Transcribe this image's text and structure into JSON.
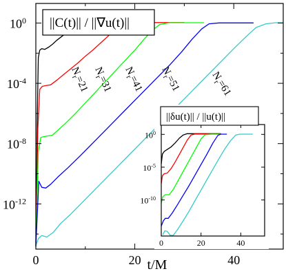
{
  "chart_data": [
    {
      "type": "line",
      "title": "||C(t)|| / ||∇u(t)||",
      "xlabel": "t/M",
      "ylabel": "",
      "xlim": [
        0,
        50
      ],
      "ylim_exponent": [
        -15,
        1.3
      ],
      "y_scale": "log",
      "x_ticks": [
        0,
        20,
        40
      ],
      "y_ticks": [
        {
          "exp": 0,
          "label_base": "10",
          "label_exp": "0"
        },
        {
          "exp": -4,
          "label_base": "10",
          "label_exp": "-4"
        },
        {
          "exp": -8,
          "label_base": "10",
          "label_exp": "-8"
        },
        {
          "exp": -12,
          "label_base": "10",
          "label_exp": "-12"
        }
      ],
      "series": [
        {
          "name": "Nr=21",
          "label_main": "N",
          "label_sub": "r",
          "label_suffix": "=21",
          "color": "#000000",
          "x": [
            0,
            0.3,
            0.5,
            0.8,
            1.2,
            1.8,
            2.6,
            3.4,
            4.2,
            5.2,
            6.4,
            7.6,
            8.6,
            9.6,
            10.6,
            11.5,
            12.5,
            14,
            16,
            18,
            20
          ],
          "y_exp": [
            -14.8,
            -6,
            -2.3,
            -1.8,
            -1.7,
            -1.75,
            -1.6,
            -1.4,
            -1.15,
            -0.9,
            -0.6,
            -0.35,
            -0.15,
            -0.05,
            0,
            0,
            0.01,
            0.02,
            0.02,
            0.02,
            0.02
          ]
        },
        {
          "name": "Nr=31",
          "label_main": "N",
          "label_sub": "r",
          "label_suffix": "=31",
          "color": "#ff0000",
          "x": [
            0,
            0.4,
            0.8,
            1.3,
            2.0,
            3.0,
            4.2,
            5.5,
            7.0,
            8.5,
            10.0,
            11.5,
            13.0,
            14.5,
            15.8,
            17.0,
            18.2,
            20,
            24,
            28,
            30
          ],
          "y_exp": [
            -14.8,
            -7,
            -4.4,
            -4.2,
            -4.15,
            -4.1,
            -3.8,
            -3.45,
            -3.05,
            -2.65,
            -2.2,
            -1.8,
            -1.35,
            -0.9,
            -0.5,
            -0.2,
            -0.03,
            0.03,
            0.03,
            0.03,
            0.03
          ]
        },
        {
          "name": "Nr=41",
          "label_main": "N",
          "label_sub": "r",
          "label_suffix": "=41",
          "color": "#00ff00",
          "x": [
            0,
            0.5,
            1.0,
            1.5,
            2.3,
            3.3,
            4.5,
            6.0,
            8.0,
            10.0,
            12.0,
            14.0,
            16.0,
            18.0,
            20.0,
            21.8,
            23.5,
            25.0,
            27,
            31,
            34
          ],
          "y_exp": [
            -14.8,
            -8.5,
            -7.6,
            -7.55,
            -7.5,
            -7.45,
            -7.1,
            -6.65,
            -6.0,
            -5.3,
            -4.6,
            -3.9,
            -3.2,
            -2.5,
            -1.8,
            -1.1,
            -0.5,
            -0.1,
            0.02,
            0.02,
            0.02
          ]
        },
        {
          "name": "Nr=51",
          "label_main": "N",
          "label_sub": "r",
          "label_suffix": "=51",
          "color": "#0000ff",
          "x": [
            0,
            0.6,
            1.2,
            2.0,
            3.0,
            4.5,
            6.5,
            9.0,
            12.0,
            15.0,
            18.0,
            21.0,
            24.0,
            27.0,
            29.5,
            31.5,
            33.5,
            35.0,
            37,
            40,
            44
          ],
          "y_exp": [
            -14.8,
            -10.5,
            -10.9,
            -10.95,
            -10.7,
            -10.2,
            -9.6,
            -8.8,
            -7.8,
            -6.8,
            -5.8,
            -4.8,
            -3.8,
            -2.8,
            -1.9,
            -1.1,
            -0.4,
            -0.05,
            0.01,
            0.01,
            0.01
          ]
        },
        {
          "name": "Nr=61",
          "label_main": "N",
          "label_sub": "r",
          "label_suffix": "=61",
          "color": "#33cccc",
          "x": [
            0,
            0.5,
            1.2,
            2.2,
            3.5,
            5.0,
            7.0,
            10.0,
            13.0,
            16.0,
            19.0,
            22.0,
            25.0,
            28.0,
            31.0,
            34.0,
            37.0,
            40.0,
            42.5,
            44.5,
            46.5,
            48.5,
            50
          ],
          "y_exp": [
            -14.8,
            -14.3,
            -14.1,
            -14.2,
            -13.9,
            -13.3,
            -12.7,
            -11.7,
            -10.7,
            -9.7,
            -8.7,
            -7.7,
            -6.7,
            -5.7,
            -4.7,
            -3.7,
            -2.7,
            -1.7,
            -0.9,
            -0.3,
            -0.05,
            0.02,
            0.02
          ]
        }
      ],
      "annotations_note": "series labels drawn rotated along curves"
    },
    {
      "type": "line",
      "title": "||δu(t)|| / ||u(t)||",
      "xlabel": "",
      "ylabel": "",
      "xlim": [
        0,
        52
      ],
      "ylim_exponent": [
        -15.5,
        1.5
      ],
      "y_scale": "log",
      "x_ticks": [
        0,
        20,
        40
      ],
      "y_ticks": [
        {
          "exp": 0,
          "label_base": "10",
          "label_exp": "0"
        },
        {
          "exp": -5,
          "label_base": "10",
          "label_exp": "-5"
        },
        {
          "exp": -10,
          "label_base": "10",
          "label_exp": "-10"
        }
      ],
      "series": [
        {
          "name": "Nr=21",
          "color": "#000000",
          "x": [
            0,
            0.6,
            1.5,
            3,
            5,
            7,
            9,
            11,
            13,
            15,
            20,
            25,
            30
          ],
          "y_exp": [
            -4.5,
            -3.0,
            -2.6,
            -2.3,
            -1.9,
            -1.3,
            -0.6,
            -0.1,
            0.1,
            0.1,
            0.1,
            0.1,
            0.1
          ]
        },
        {
          "name": "Nr=31",
          "color": "#ff0000",
          "x": [
            0,
            0.6,
            1.5,
            3,
            5,
            7,
            9,
            11,
            13,
            15,
            17,
            20,
            25,
            30
          ],
          "y_exp": [
            -7.5,
            -6.3,
            -6.0,
            -5.9,
            -5.2,
            -4.2,
            -3.1,
            -2.0,
            -0.9,
            -0.1,
            0.05,
            0.05,
            0.05,
            0.05
          ]
        },
        {
          "name": "Nr=41",
          "color": "#00ff00",
          "x": [
            0,
            0.8,
            2,
            4,
            6,
            8,
            10,
            12,
            14,
            16,
            18,
            20,
            22,
            25,
            30
          ],
          "y_exp": [
            -10.5,
            -9.5,
            -9.2,
            -9.2,
            -8.4,
            -7.3,
            -6.2,
            -5.1,
            -4.0,
            -2.9,
            -1.8,
            -0.7,
            -0.05,
            0.03,
            0.03
          ]
        },
        {
          "name": "Nr=51",
          "color": "#0000ff",
          "x": [
            0,
            1,
            2,
            3.5,
            5.5,
            8,
            11,
            14,
            17,
            20,
            23,
            26,
            28.5,
            30,
            33
          ],
          "y_exp": [
            -14.0,
            -13.2,
            -12.8,
            -12.8,
            -12.0,
            -10.8,
            -9.3,
            -7.8,
            -6.2,
            -4.6,
            -3.0,
            -1.3,
            -0.15,
            0.03,
            0.03
          ]
        },
        {
          "name": "Nr=61",
          "color": "#33cccc",
          "x": [
            0.8,
            1.8,
            3,
            4.5,
            6,
            8,
            11,
            14,
            17,
            20,
            23,
            26,
            29,
            32,
            35,
            37.5,
            39.5,
            42,
            46
          ],
          "y_exp": [
            -15.3,
            -14.7,
            -14.8,
            -15.4,
            -15.4,
            -14.6,
            -13.2,
            -11.7,
            -10.1,
            -8.5,
            -6.9,
            -5.3,
            -3.7,
            -2.2,
            -0.9,
            -0.1,
            0.03,
            0.03,
            0.03
          ]
        }
      ]
    }
  ]
}
